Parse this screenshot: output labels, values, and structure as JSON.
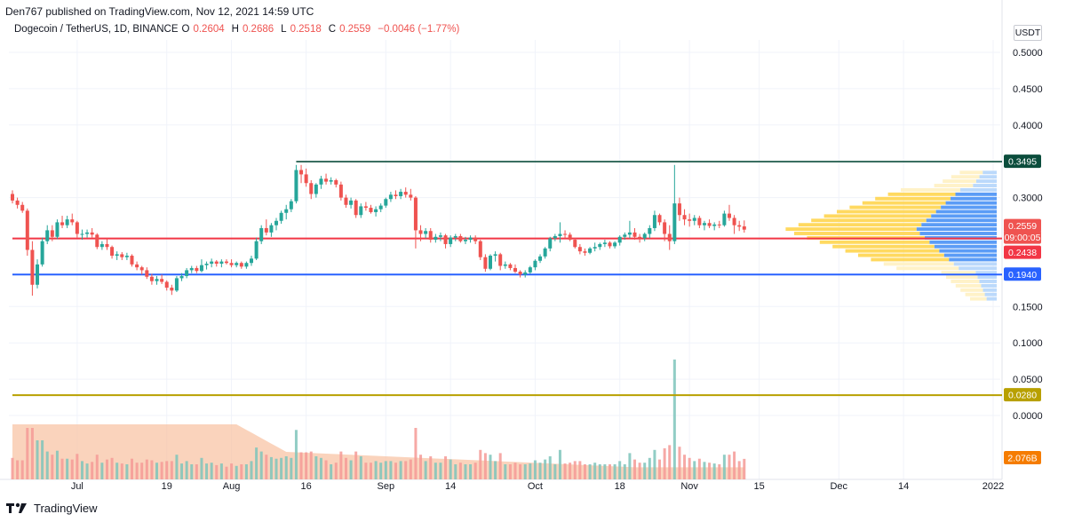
{
  "header": {
    "publisher": "Den767 published on TradingView.com, Nov 12, 2021 14:59 UTC"
  },
  "symbol": {
    "name": "Dogecoin / TetherUS, 1D, BINANCE",
    "open_label": "O",
    "open": "0.2604",
    "high_label": "H",
    "high": "0.2686",
    "low_label": "L",
    "low": "0.2518",
    "close_label": "C",
    "close": "0.2559",
    "change": "−0.0046 (−1.77%)"
  },
  "currency_unit": "USDT",
  "footer": {
    "brand": "TradingView"
  },
  "colors": {
    "up": "#26a69a",
    "down": "#ef5350",
    "resistance": "#0b4d3c",
    "support_red": "#f23645",
    "support_blue": "#2962ff",
    "low_line": "#b8a000",
    "volume_area": "#f8c4a5"
  },
  "chart_data": {
    "type": "candlestick",
    "title": "",
    "xlabel": "",
    "ylabel": "",
    "ylim": [
      -0.05,
      0.52
    ],
    "y_ticks": [
      "0.5000",
      "0.4500",
      "0.4000",
      "0.3000",
      "0.1500",
      "0.1000",
      "0.0500",
      "0.0000"
    ],
    "x_ticks": [
      "Jul",
      "19",
      "Aug",
      "16",
      "Sep",
      "14",
      "Oct",
      "18",
      "Nov",
      "15",
      "Dec",
      "14",
      "2022"
    ],
    "x_tick_dates": [
      "2021-07-01",
      "2021-07-19",
      "2021-08-01",
      "2021-08-16",
      "2021-09-01",
      "2021-09-14",
      "2021-10-01",
      "2021-10-18",
      "2021-11-01",
      "2021-11-15",
      "2021-12-01",
      "2021-12-14",
      "2022-01-01"
    ],
    "start_date": "2021-06-18",
    "end_date": "2022-01-01",
    "price_labels": [
      {
        "value": "0.3495",
        "color": "#0b4d3c"
      },
      {
        "value": "0.2559",
        "color": "#ef5350"
      },
      {
        "value": "09:00:05",
        "color": "#ef5350"
      },
      {
        "value": "0.2438",
        "color": "#f23645"
      },
      {
        "value": "0.1940",
        "color": "#2962ff"
      },
      {
        "value": "0.0280",
        "color": "#b8a000"
      },
      {
        "value": "2.076B",
        "color": "#f57c00"
      }
    ],
    "horizontal_lines": [
      {
        "value": 0.3495,
        "from": "2021-08-14",
        "color": "#0b4d3c"
      },
      {
        "value": 0.2438,
        "from": "2021-06-18",
        "color": "#f23645"
      },
      {
        "value": 0.194,
        "from": "2021-06-18",
        "color": "#2962ff"
      },
      {
        "value": 0.028,
        "from": "2021-06-18",
        "color": "#b8a000"
      }
    ],
    "ohlc": [
      [
        "2021-06-18",
        0.305,
        0.31,
        0.292,
        0.296
      ],
      [
        "2021-06-19",
        0.296,
        0.3,
        0.285,
        0.29
      ],
      [
        "2021-06-20",
        0.29,
        0.294,
        0.279,
        0.282
      ],
      [
        "2021-06-21",
        0.282,
        0.285,
        0.22,
        0.228
      ],
      [
        "2021-06-22",
        0.228,
        0.24,
        0.165,
        0.18
      ],
      [
        "2021-06-23",
        0.18,
        0.215,
        0.175,
        0.208
      ],
      [
        "2021-06-24",
        0.208,
        0.245,
        0.205,
        0.24
      ],
      [
        "2021-06-25",
        0.24,
        0.262,
        0.236,
        0.255
      ],
      [
        "2021-06-26",
        0.255,
        0.262,
        0.24,
        0.246
      ],
      [
        "2021-06-27",
        0.246,
        0.27,
        0.243,
        0.266
      ],
      [
        "2021-06-28",
        0.266,
        0.275,
        0.258,
        0.262
      ],
      [
        "2021-06-29",
        0.262,
        0.275,
        0.258,
        0.27
      ],
      [
        "2021-06-30",
        0.27,
        0.278,
        0.262,
        0.266
      ],
      [
        "2021-07-01",
        0.266,
        0.268,
        0.245,
        0.25
      ],
      [
        "2021-07-02",
        0.25,
        0.256,
        0.242,
        0.25
      ],
      [
        "2021-07-03",
        0.25,
        0.256,
        0.245,
        0.252
      ],
      [
        "2021-07-04",
        0.252,
        0.258,
        0.245,
        0.249
      ],
      [
        "2021-07-05",
        0.249,
        0.251,
        0.229,
        0.232
      ],
      [
        "2021-07-06",
        0.232,
        0.24,
        0.228,
        0.236
      ],
      [
        "2021-07-07",
        0.236,
        0.244,
        0.228,
        0.232
      ],
      [
        "2021-07-08",
        0.232,
        0.234,
        0.216,
        0.22
      ],
      [
        "2021-07-09",
        0.22,
        0.226,
        0.214,
        0.222
      ],
      [
        "2021-07-10",
        0.222,
        0.225,
        0.214,
        0.218
      ],
      [
        "2021-07-11",
        0.218,
        0.224,
        0.214,
        0.22
      ],
      [
        "2021-07-12",
        0.22,
        0.222,
        0.205,
        0.208
      ],
      [
        "2021-07-13",
        0.208,
        0.212,
        0.2,
        0.204
      ],
      [
        "2021-07-14",
        0.204,
        0.206,
        0.194,
        0.2
      ],
      [
        "2021-07-15",
        0.2,
        0.204,
        0.188,
        0.191
      ],
      [
        "2021-07-16",
        0.191,
        0.195,
        0.18,
        0.185
      ],
      [
        "2021-07-17",
        0.185,
        0.192,
        0.18,
        0.188
      ],
      [
        "2021-07-18",
        0.188,
        0.194,
        0.181,
        0.184
      ],
      [
        "2021-07-19",
        0.184,
        0.186,
        0.172,
        0.176
      ],
      [
        "2021-07-20",
        0.176,
        0.18,
        0.166,
        0.172
      ],
      [
        "2021-07-21",
        0.172,
        0.192,
        0.17,
        0.189
      ],
      [
        "2021-07-22",
        0.189,
        0.196,
        0.185,
        0.192
      ],
      [
        "2021-07-23",
        0.192,
        0.203,
        0.189,
        0.2
      ],
      [
        "2021-07-24",
        0.2,
        0.206,
        0.196,
        0.203
      ],
      [
        "2021-07-25",
        0.203,
        0.206,
        0.196,
        0.199
      ],
      [
        "2021-07-26",
        0.199,
        0.215,
        0.197,
        0.207
      ],
      [
        "2021-07-27",
        0.207,
        0.212,
        0.201,
        0.209
      ],
      [
        "2021-07-28",
        0.209,
        0.216,
        0.204,
        0.212
      ],
      [
        "2021-07-29",
        0.212,
        0.214,
        0.205,
        0.209
      ],
      [
        "2021-07-30",
        0.209,
        0.215,
        0.204,
        0.212
      ],
      [
        "2021-07-31",
        0.212,
        0.215,
        0.208,
        0.21
      ],
      [
        "2021-08-01",
        0.21,
        0.215,
        0.204,
        0.207
      ],
      [
        "2021-08-02",
        0.207,
        0.212,
        0.204,
        0.21
      ],
      [
        "2021-08-03",
        0.21,
        0.212,
        0.202,
        0.205
      ],
      [
        "2021-08-04",
        0.205,
        0.212,
        0.202,
        0.21
      ],
      [
        "2021-08-05",
        0.21,
        0.22,
        0.206,
        0.216
      ],
      [
        "2021-08-06",
        0.216,
        0.245,
        0.214,
        0.24
      ],
      [
        "2021-08-07",
        0.24,
        0.262,
        0.236,
        0.258
      ],
      [
        "2021-08-08",
        0.258,
        0.27,
        0.248,
        0.252
      ],
      [
        "2021-08-09",
        0.252,
        0.265,
        0.246,
        0.262
      ],
      [
        "2021-08-10",
        0.262,
        0.272,
        0.255,
        0.268
      ],
      [
        "2021-08-11",
        0.268,
        0.282,
        0.264,
        0.279
      ],
      [
        "2021-08-12",
        0.279,
        0.29,
        0.27,
        0.284
      ],
      [
        "2021-08-13",
        0.284,
        0.298,
        0.28,
        0.295
      ],
      [
        "2021-08-14",
        0.295,
        0.345,
        0.292,
        0.338
      ],
      [
        "2021-08-15",
        0.338,
        0.345,
        0.32,
        0.332
      ],
      [
        "2021-08-16",
        0.332,
        0.34,
        0.315,
        0.32
      ],
      [
        "2021-08-17",
        0.32,
        0.324,
        0.298,
        0.305
      ],
      [
        "2021-08-18",
        0.305,
        0.32,
        0.3,
        0.318
      ],
      [
        "2021-08-19",
        0.318,
        0.33,
        0.312,
        0.326
      ],
      [
        "2021-08-20",
        0.326,
        0.333,
        0.318,
        0.322
      ],
      [
        "2021-08-21",
        0.322,
        0.328,
        0.318,
        0.324
      ],
      [
        "2021-08-22",
        0.324,
        0.326,
        0.314,
        0.318
      ],
      [
        "2021-08-23",
        0.318,
        0.322,
        0.296,
        0.3
      ],
      [
        "2021-08-24",
        0.3,
        0.304,
        0.286,
        0.29
      ],
      [
        "2021-08-25",
        0.29,
        0.3,
        0.285,
        0.296
      ],
      [
        "2021-08-26",
        0.296,
        0.298,
        0.272,
        0.276
      ],
      [
        "2021-08-27",
        0.276,
        0.292,
        0.272,
        0.288
      ],
      [
        "2021-08-28",
        0.288,
        0.294,
        0.282,
        0.286
      ],
      [
        "2021-08-29",
        0.286,
        0.29,
        0.278,
        0.28
      ],
      [
        "2021-08-30",
        0.28,
        0.288,
        0.274,
        0.284
      ],
      [
        "2021-08-31",
        0.284,
        0.292,
        0.28,
        0.289
      ],
      [
        "2021-09-01",
        0.289,
        0.3,
        0.286,
        0.298
      ],
      [
        "2021-09-02",
        0.298,
        0.308,
        0.294,
        0.304
      ],
      [
        "2021-09-03",
        0.304,
        0.31,
        0.298,
        0.302
      ],
      [
        "2021-09-04",
        0.302,
        0.312,
        0.298,
        0.308
      ],
      [
        "2021-09-05",
        0.308,
        0.314,
        0.3,
        0.304
      ],
      [
        "2021-09-06",
        0.304,
        0.312,
        0.296,
        0.3
      ],
      [
        "2021-09-07",
        0.3,
        0.302,
        0.23,
        0.255
      ],
      [
        "2021-09-08",
        0.255,
        0.262,
        0.24,
        0.25
      ],
      [
        "2021-09-09",
        0.25,
        0.258,
        0.244,
        0.254
      ],
      [
        "2021-09-10",
        0.254,
        0.258,
        0.238,
        0.242
      ],
      [
        "2021-09-11",
        0.242,
        0.25,
        0.238,
        0.246
      ],
      [
        "2021-09-12",
        0.246,
        0.252,
        0.24,
        0.248
      ],
      [
        "2021-09-13",
        0.248,
        0.25,
        0.23,
        0.236
      ],
      [
        "2021-09-14",
        0.236,
        0.248,
        0.232,
        0.245
      ],
      [
        "2021-09-15",
        0.245,
        0.25,
        0.24,
        0.247
      ],
      [
        "2021-09-16",
        0.247,
        0.25,
        0.238,
        0.24
      ],
      [
        "2021-09-17",
        0.24,
        0.246,
        0.236,
        0.242
      ],
      [
        "2021-09-18",
        0.242,
        0.248,
        0.238,
        0.245
      ],
      [
        "2021-09-19",
        0.245,
        0.248,
        0.236,
        0.24
      ],
      [
        "2021-09-20",
        0.24,
        0.242,
        0.214,
        0.218
      ],
      [
        "2021-09-21",
        0.218,
        0.222,
        0.198,
        0.202
      ],
      [
        "2021-09-22",
        0.202,
        0.222,
        0.2,
        0.22
      ],
      [
        "2021-09-23",
        0.22,
        0.226,
        0.212,
        0.222
      ],
      [
        "2021-09-24",
        0.222,
        0.224,
        0.2,
        0.206
      ],
      [
        "2021-09-25",
        0.206,
        0.212,
        0.202,
        0.208
      ],
      [
        "2021-09-26",
        0.208,
        0.21,
        0.2,
        0.203
      ],
      [
        "2021-09-27",
        0.203,
        0.208,
        0.196,
        0.198
      ],
      [
        "2021-09-28",
        0.198,
        0.2,
        0.19,
        0.194
      ],
      [
        "2021-09-29",
        0.194,
        0.2,
        0.19,
        0.197
      ],
      [
        "2021-09-30",
        0.197,
        0.206,
        0.195,
        0.204
      ],
      [
        "2021-10-01",
        0.204,
        0.215,
        0.2,
        0.213
      ],
      [
        "2021-10-02",
        0.213,
        0.222,
        0.21,
        0.219
      ],
      [
        "2021-10-03",
        0.219,
        0.232,
        0.216,
        0.23
      ],
      [
        "2021-10-04",
        0.23,
        0.246,
        0.226,
        0.244
      ],
      [
        "2021-10-05",
        0.244,
        0.25,
        0.24,
        0.247
      ],
      [
        "2021-10-06",
        0.247,
        0.266,
        0.238,
        0.25
      ],
      [
        "2021-10-07",
        0.25,
        0.255,
        0.244,
        0.249
      ],
      [
        "2021-10-08",
        0.249,
        0.252,
        0.24,
        0.242
      ],
      [
        "2021-10-09",
        0.242,
        0.244,
        0.23,
        0.232
      ],
      [
        "2021-10-10",
        0.232,
        0.236,
        0.222,
        0.226
      ],
      [
        "2021-10-11",
        0.226,
        0.23,
        0.22,
        0.224
      ],
      [
        "2021-10-12",
        0.224,
        0.232,
        0.222,
        0.23
      ],
      [
        "2021-10-13",
        0.23,
        0.238,
        0.226,
        0.232
      ],
      [
        "2021-10-14",
        0.232,
        0.238,
        0.228,
        0.236
      ],
      [
        "2021-10-15",
        0.236,
        0.242,
        0.232,
        0.238
      ],
      [
        "2021-10-16",
        0.238,
        0.24,
        0.23,
        0.233
      ],
      [
        "2021-10-17",
        0.233,
        0.24,
        0.23,
        0.238
      ],
      [
        "2021-10-18",
        0.238,
        0.248,
        0.234,
        0.246
      ],
      [
        "2021-10-19",
        0.246,
        0.252,
        0.242,
        0.249
      ],
      [
        "2021-10-20",
        0.249,
        0.268,
        0.244,
        0.252
      ],
      [
        "2021-10-21",
        0.252,
        0.258,
        0.242,
        0.246
      ],
      [
        "2021-10-22",
        0.246,
        0.25,
        0.238,
        0.244
      ],
      [
        "2021-10-23",
        0.244,
        0.252,
        0.24,
        0.25
      ],
      [
        "2021-10-24",
        0.25,
        0.262,
        0.244,
        0.258
      ],
      [
        "2021-10-25",
        0.258,
        0.282,
        0.254,
        0.276
      ],
      [
        "2021-10-26",
        0.276,
        0.278,
        0.262,
        0.266
      ],
      [
        "2021-10-27",
        0.266,
        0.27,
        0.24,
        0.25
      ],
      [
        "2021-10-28",
        0.25,
        0.262,
        0.228,
        0.24
      ],
      [
        "2021-10-29",
        0.24,
        0.345,
        0.236,
        0.292
      ],
      [
        "2021-10-30",
        0.292,
        0.3,
        0.268,
        0.276
      ],
      [
        "2021-10-31",
        0.276,
        0.284,
        0.262,
        0.27
      ],
      [
        "2021-11-01",
        0.27,
        0.278,
        0.26,
        0.268
      ],
      [
        "2021-11-02",
        0.268,
        0.276,
        0.262,
        0.272
      ],
      [
        "2021-11-03",
        0.272,
        0.275,
        0.258,
        0.262
      ],
      [
        "2021-11-04",
        0.262,
        0.268,
        0.255,
        0.265
      ],
      [
        "2021-11-05",
        0.265,
        0.27,
        0.258,
        0.261
      ],
      [
        "2021-11-06",
        0.261,
        0.266,
        0.255,
        0.263
      ],
      [
        "2021-11-07",
        0.263,
        0.268,
        0.258,
        0.262
      ],
      [
        "2021-11-08",
        0.262,
        0.282,
        0.26,
        0.278
      ],
      [
        "2021-11-09",
        0.278,
        0.29,
        0.268,
        0.272
      ],
      [
        "2021-11-10",
        0.272,
        0.276,
        0.25,
        0.262
      ],
      [
        "2021-11-11",
        0.262,
        0.268,
        0.254,
        0.26
      ],
      [
        "2021-11-12",
        0.2604,
        0.2686,
        0.2518,
        0.2559
      ]
    ],
    "volume_profile_note": "visible-range volume profile drawn on the right side",
    "volume": "daily volume bars at bottom with moving average area"
  }
}
